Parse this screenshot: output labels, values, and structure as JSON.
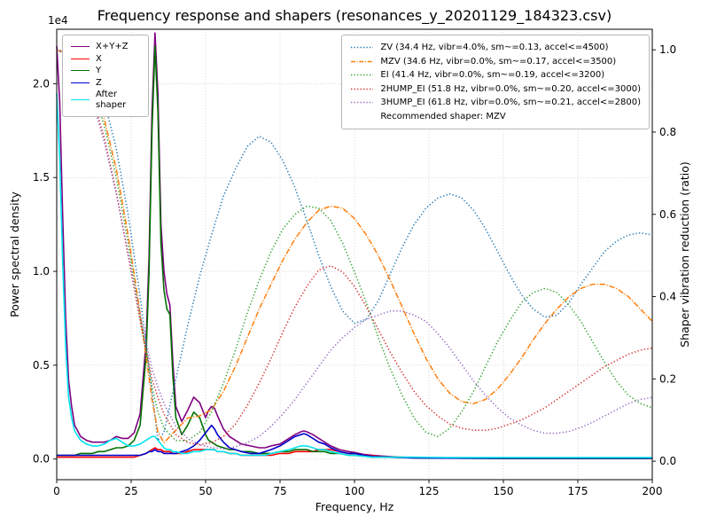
{
  "chart_data": {
    "type": "line",
    "title": "Frequency response and shapers (resonances_y_20201129_184323.csv)",
    "xlabel": "Frequency, Hz",
    "ylabel_left": "Power spectral density",
    "ylabel_right": "Shaper vibration reduction (ratio)",
    "y_left_offset_text": "1e4",
    "x_range": [
      0,
      200
    ],
    "y_left_range": [
      -0.11,
      2.29
    ],
    "y_right_range": [
      -0.045,
      1.05
    ],
    "x_ticks": [
      0,
      25,
      50,
      75,
      100,
      125,
      150,
      175,
      200
    ],
    "y_left_ticks": [
      "0.0",
      "0.5",
      "1.0",
      "1.5",
      "2.0"
    ],
    "y_right_ticks": [
      "0.0",
      "0.2",
      "0.4",
      "0.6",
      "0.8",
      "1.0"
    ],
    "grid": true,
    "legend_positions": {
      "psd": "upper left",
      "shapers": "upper right"
    },
    "psd": {
      "units_multiplier": "1e4",
      "freq": [
        0,
        1,
        2,
        3,
        4,
        5,
        6,
        8,
        10,
        12,
        14,
        16,
        18,
        20,
        22,
        24,
        26,
        28,
        30,
        31,
        32,
        33,
        34,
        35,
        36,
        37,
        38,
        39,
        40,
        42,
        44,
        46,
        48,
        50,
        51,
        52,
        53,
        54,
        56,
        58,
        60,
        62,
        65,
        68,
        70,
        72,
        75,
        78,
        80,
        82,
        83,
        84,
        86,
        88,
        90,
        92,
        95,
        98,
        100,
        103,
        106,
        110,
        115,
        120,
        130,
        140,
        150,
        160,
        170,
        180,
        190,
        200
      ],
      "series": [
        {
          "name": "X+Y+Z",
          "color": "#800080",
          "values": [
            2.2,
            1.9,
            1.3,
            0.75,
            0.42,
            0.28,
            0.18,
            0.12,
            0.1,
            0.09,
            0.09,
            0.09,
            0.1,
            0.12,
            0.11,
            0.11,
            0.14,
            0.24,
            0.62,
            1.08,
            1.85,
            2.27,
            1.95,
            1.25,
            1.0,
            0.88,
            0.82,
            0.52,
            0.28,
            0.2,
            0.26,
            0.33,
            0.3,
            0.22,
            0.26,
            0.28,
            0.27,
            0.23,
            0.16,
            0.12,
            0.1,
            0.08,
            0.07,
            0.06,
            0.06,
            0.07,
            0.08,
            0.11,
            0.13,
            0.145,
            0.15,
            0.145,
            0.13,
            0.11,
            0.09,
            0.07,
            0.05,
            0.04,
            0.035,
            0.025,
            0.02,
            0.015,
            0.01,
            0.008,
            0.006,
            0.005,
            0.004,
            0.004,
            0.004,
            0.004,
            0.004,
            0.004
          ]
        },
        {
          "name": "X",
          "color": "#ff0000",
          "values": [
            0.01,
            0.01,
            0.01,
            0.01,
            0.01,
            0.01,
            0.01,
            0.01,
            0.01,
            0.01,
            0.01,
            0.01,
            0.01,
            0.01,
            0.01,
            0.01,
            0.01,
            0.02,
            0.03,
            0.04,
            0.05,
            0.06,
            0.05,
            0.05,
            0.04,
            0.04,
            0.04,
            0.03,
            0.03,
            0.03,
            0.04,
            0.05,
            0.05,
            0.05,
            0.05,
            0.05,
            0.05,
            0.04,
            0.04,
            0.03,
            0.03,
            0.02,
            0.02,
            0.02,
            0.02,
            0.02,
            0.03,
            0.03,
            0.04,
            0.04,
            0.04,
            0.04,
            0.04,
            0.05,
            0.05,
            0.05,
            0.04,
            0.03,
            0.03,
            0.02,
            0.02,
            0.01,
            0.01,
            0.008,
            0.006,
            0.005,
            0.005,
            0.005,
            0.005,
            0.005,
            0.005,
            0.005
          ]
        },
        {
          "name": "Y",
          "color": "#007000",
          "values": [
            0.02,
            0.02,
            0.02,
            0.02,
            0.02,
            0.02,
            0.02,
            0.03,
            0.03,
            0.03,
            0.04,
            0.04,
            0.05,
            0.06,
            0.06,
            0.07,
            0.1,
            0.18,
            0.55,
            1.0,
            1.75,
            2.2,
            1.85,
            1.15,
            0.9,
            0.8,
            0.77,
            0.45,
            0.22,
            0.13,
            0.18,
            0.25,
            0.22,
            0.13,
            0.1,
            0.09,
            0.08,
            0.07,
            0.06,
            0.05,
            0.05,
            0.04,
            0.04,
            0.03,
            0.03,
            0.03,
            0.04,
            0.04,
            0.05,
            0.05,
            0.05,
            0.05,
            0.04,
            0.04,
            0.04,
            0.03,
            0.03,
            0.02,
            0.02,
            0.015,
            0.01,
            0.01,
            0.008,
            0.006,
            0.005,
            0.004,
            0.003,
            0.003,
            0.003,
            0.003,
            0.003,
            0.003
          ]
        },
        {
          "name": "Z",
          "color": "#0000cd",
          "values": [
            0.02,
            0.02,
            0.02,
            0.02,
            0.02,
            0.02,
            0.02,
            0.02,
            0.02,
            0.02,
            0.02,
            0.02,
            0.02,
            0.02,
            0.02,
            0.02,
            0.02,
            0.02,
            0.03,
            0.04,
            0.04,
            0.05,
            0.04,
            0.04,
            0.03,
            0.03,
            0.03,
            0.03,
            0.03,
            0.04,
            0.05,
            0.07,
            0.1,
            0.14,
            0.16,
            0.18,
            0.16,
            0.13,
            0.09,
            0.06,
            0.05,
            0.04,
            0.03,
            0.03,
            0.04,
            0.05,
            0.07,
            0.1,
            0.12,
            0.13,
            0.135,
            0.13,
            0.11,
            0.09,
            0.08,
            0.06,
            0.04,
            0.03,
            0.03,
            0.02,
            0.015,
            0.01,
            0.008,
            0.006,
            0.005,
            0.005,
            0.005,
            0.005,
            0.005,
            0.005,
            0.005,
            0.005
          ]
        },
        {
          "name": "After shaper",
          "color": "#00e5ee",
          "values": [
            1.95,
            1.6,
            1.05,
            0.6,
            0.33,
            0.22,
            0.15,
            0.1,
            0.08,
            0.07,
            0.07,
            0.08,
            0.1,
            0.11,
            0.09,
            0.07,
            0.07,
            0.08,
            0.1,
            0.11,
            0.12,
            0.12,
            0.1,
            0.08,
            0.06,
            0.05,
            0.05,
            0.04,
            0.04,
            0.03,
            0.03,
            0.04,
            0.04,
            0.05,
            0.05,
            0.05,
            0.05,
            0.04,
            0.04,
            0.03,
            0.03,
            0.02,
            0.02,
            0.02,
            0.02,
            0.03,
            0.04,
            0.05,
            0.06,
            0.07,
            0.07,
            0.07,
            0.06,
            0.05,
            0.05,
            0.04,
            0.03,
            0.02,
            0.02,
            0.015,
            0.01,
            0.01,
            0.01,
            0.01,
            0.008,
            0.008,
            0.008,
            0.008,
            0.008,
            0.008,
            0.008,
            0.008
          ]
        }
      ]
    },
    "shapers": {
      "note": "Recommended shaper: MZV",
      "freq": [
        0,
        4,
        8,
        12,
        16,
        20,
        24,
        28,
        32,
        34,
        36,
        40,
        44,
        48,
        52,
        56,
        60,
        64,
        68,
        72,
        76,
        80,
        84,
        88,
        92,
        96,
        100,
        104,
        108,
        112,
        116,
        120,
        124,
        128,
        132,
        136,
        140,
        144,
        148,
        152,
        156,
        160,
        164,
        168,
        172,
        176,
        180,
        184,
        188,
        192,
        196,
        200
      ],
      "series": [
        {
          "name": "ZV",
          "label": "ZV (34.4 Hz, vibr=4.0%, sm~=0.13, accel<=4500)",
          "color": "#1f77b4",
          "linestyle": "dotted",
          "values": [
            1.0,
            0.995,
            0.98,
            0.945,
            0.875,
            0.76,
            0.6,
            0.4,
            0.17,
            0.05,
            0.07,
            0.2,
            0.33,
            0.45,
            0.55,
            0.645,
            0.71,
            0.765,
            0.79,
            0.775,
            0.73,
            0.665,
            0.585,
            0.5,
            0.425,
            0.365,
            0.335,
            0.345,
            0.39,
            0.455,
            0.52,
            0.575,
            0.615,
            0.64,
            0.65,
            0.64,
            0.61,
            0.565,
            0.51,
            0.455,
            0.405,
            0.37,
            0.35,
            0.355,
            0.385,
            0.43,
            0.47,
            0.51,
            0.535,
            0.55,
            0.555,
            0.55
          ]
        },
        {
          "name": "MZV",
          "label": "MZV (34.6 Hz, vibr=0.0%, sm~=0.17, accel<=3500)",
          "color": "#ff7f0e",
          "linestyle": "dashdot",
          "values": [
            1.0,
            0.99,
            0.965,
            0.915,
            0.83,
            0.71,
            0.55,
            0.36,
            0.15,
            0.07,
            0.045,
            0.075,
            0.105,
            0.11,
            0.125,
            0.17,
            0.23,
            0.3,
            0.37,
            0.43,
            0.49,
            0.54,
            0.58,
            0.61,
            0.62,
            0.615,
            0.59,
            0.55,
            0.5,
            0.44,
            0.375,
            0.31,
            0.25,
            0.2,
            0.165,
            0.145,
            0.14,
            0.15,
            0.175,
            0.21,
            0.25,
            0.295,
            0.335,
            0.37,
            0.4,
            0.42,
            0.43,
            0.43,
            0.42,
            0.4,
            0.37,
            0.34
          ]
        },
        {
          "name": "EI",
          "label": "EI (41.4 Hz, vibr=0.0%, sm~=0.19, accel<=3200)",
          "color": "#2ca02c",
          "linestyle": "dotted",
          "values": [
            1.0,
            0.99,
            0.96,
            0.905,
            0.815,
            0.69,
            0.53,
            0.35,
            0.18,
            0.12,
            0.08,
            0.05,
            0.05,
            0.07,
            0.12,
            0.19,
            0.27,
            0.36,
            0.44,
            0.51,
            0.565,
            0.6,
            0.62,
            0.615,
            0.585,
            0.53,
            0.46,
            0.385,
            0.3,
            0.225,
            0.16,
            0.105,
            0.07,
            0.06,
            0.08,
            0.12,
            0.17,
            0.23,
            0.29,
            0.34,
            0.385,
            0.41,
            0.42,
            0.41,
            0.38,
            0.34,
            0.29,
            0.24,
            0.195,
            0.16,
            0.14,
            0.13
          ]
        },
        {
          "name": "2HUMP_EI",
          "label": "2HUMP_EI (51.8 Hz, vibr=0.0%, sm~=0.20, accel<=3000)",
          "color": "#d62728",
          "linestyle": "dotted",
          "values": [
            1.0,
            0.985,
            0.95,
            0.885,
            0.785,
            0.655,
            0.5,
            0.34,
            0.2,
            0.155,
            0.115,
            0.065,
            0.045,
            0.04,
            0.045,
            0.06,
            0.09,
            0.135,
            0.19,
            0.25,
            0.315,
            0.375,
            0.425,
            0.465,
            0.475,
            0.46,
            0.425,
            0.375,
            0.32,
            0.265,
            0.215,
            0.17,
            0.135,
            0.11,
            0.09,
            0.08,
            0.075,
            0.075,
            0.08,
            0.09,
            0.1,
            0.115,
            0.13,
            0.15,
            0.17,
            0.19,
            0.21,
            0.23,
            0.245,
            0.26,
            0.27,
            0.275
          ]
        },
        {
          "name": "3HUMP_EI",
          "label": "3HUMP_EI (61.8 Hz, vibr=0.0%, sm~=0.21, accel<=2800)",
          "color": "#9467bd",
          "linestyle": "dotted",
          "values": [
            1.0,
            0.985,
            0.945,
            0.875,
            0.775,
            0.65,
            0.505,
            0.355,
            0.225,
            0.18,
            0.14,
            0.085,
            0.055,
            0.04,
            0.033,
            0.03,
            0.035,
            0.045,
            0.06,
            0.085,
            0.115,
            0.15,
            0.19,
            0.23,
            0.27,
            0.3,
            0.325,
            0.345,
            0.355,
            0.365,
            0.365,
            0.355,
            0.34,
            0.31,
            0.275,
            0.235,
            0.195,
            0.16,
            0.13,
            0.105,
            0.088,
            0.075,
            0.068,
            0.068,
            0.072,
            0.082,
            0.095,
            0.11,
            0.125,
            0.14,
            0.15,
            0.155
          ]
        }
      ]
    }
  }
}
